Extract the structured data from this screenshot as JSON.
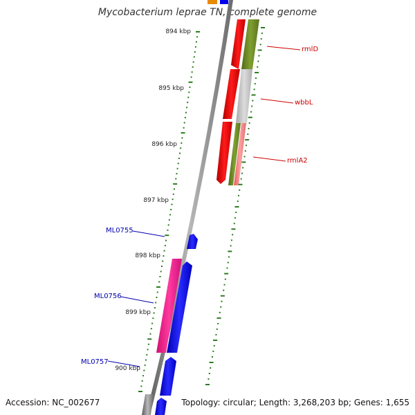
{
  "title": "Mycobacterium leprae TN, complete genome",
  "footer": {
    "accession": "Accession: NC_002677",
    "summary": "Topology: circular; Length: 3,268,203 bp; Genes: 1,655"
  },
  "ticks": [
    "894 kbp",
    "895 kbp",
    "896 kbp",
    "897 kbp",
    "898 kbp",
    "899 kbp",
    "900 kbp"
  ],
  "genes": [
    {
      "label": "rmlD",
      "color": "#cc0000"
    },
    {
      "label": "wbbL",
      "color": "#cc0000"
    },
    {
      "label": "rmlA2",
      "color": "#cc0000"
    },
    {
      "label": "ML0755",
      "color": "#0000aa"
    },
    {
      "label": "ML0756",
      "color": "#0000aa"
    },
    {
      "label": "ML0757",
      "color": "#0000aa"
    }
  ],
  "colors": {
    "backbone": "#808080",
    "tick": "#2a7a1e",
    "red_gene": "#ee0000",
    "olive_gene": "#6b8e23",
    "grey_gene": "#bdbdbd",
    "pink_gene": "#f08080",
    "blue_gene": "#0000ee",
    "magenta_gene": "#ff1493"
  }
}
